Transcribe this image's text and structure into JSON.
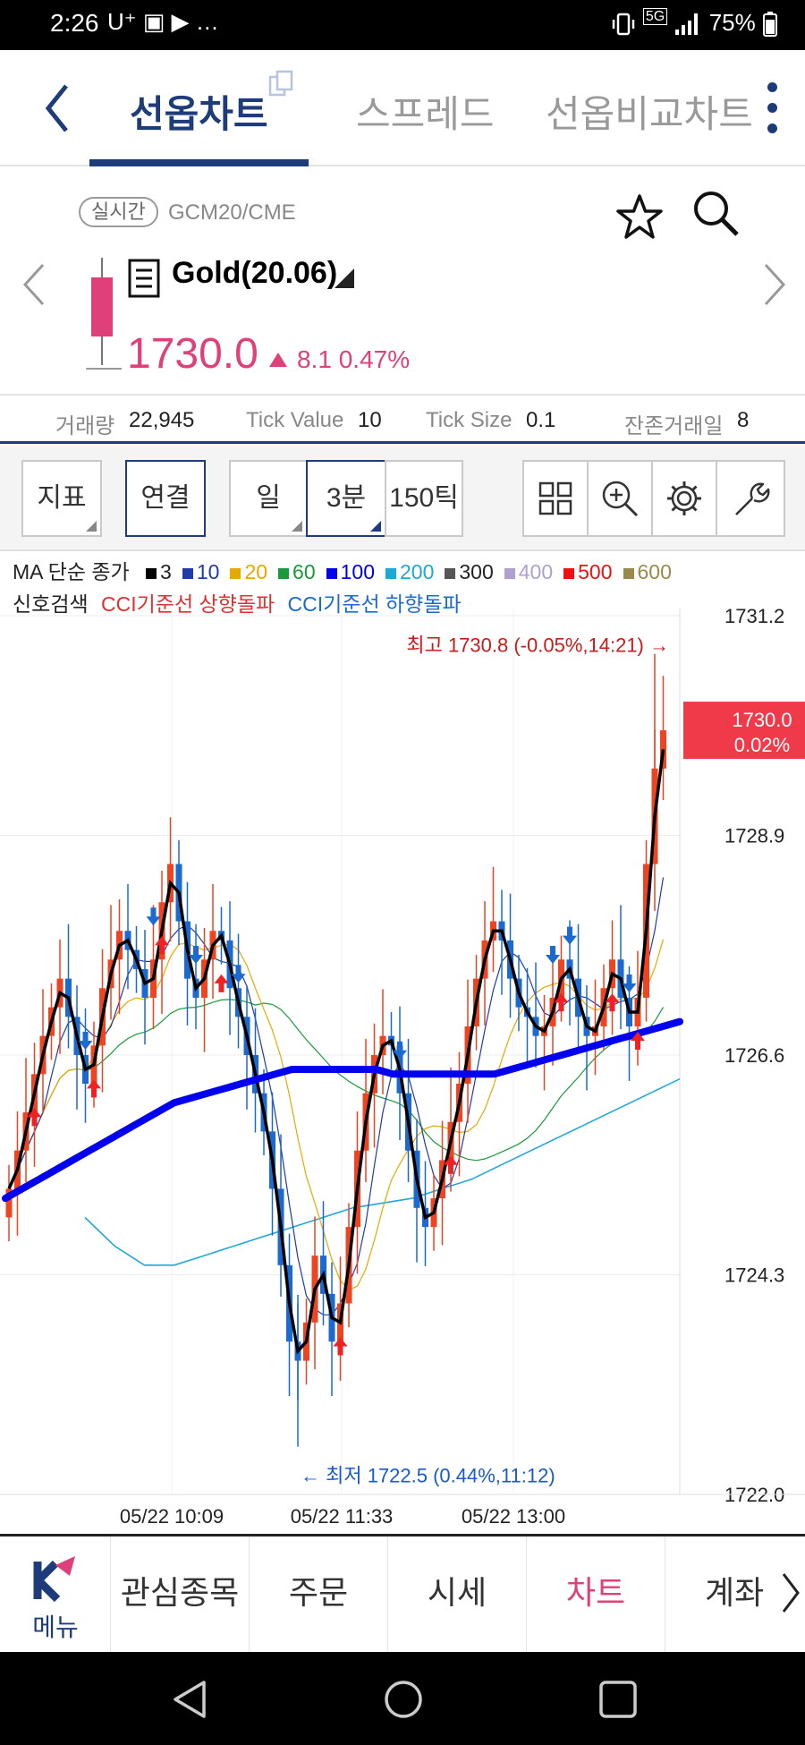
{
  "status_bar": {
    "time": "2:26",
    "left_icons": "U⁺ ▣ ▶  …",
    "network": "5G",
    "battery": "75%"
  },
  "header": {
    "tabs": [
      {
        "label": "선옵차트",
        "active": true
      },
      {
        "label": "스프레드",
        "active": false
      },
      {
        "label": "선옵비교차트",
        "active": false
      }
    ]
  },
  "quote": {
    "realtime_badge": "실시간",
    "symbol_code": "GCM20/CME",
    "instrument": "Gold(20.06)",
    "price": "1730.0",
    "change": "8.1",
    "change_pct": "0.47%",
    "up_color": "#e0407a"
  },
  "info": {
    "volume_label": "거래량",
    "volume": "22,945",
    "tick_value_label": "Tick Value",
    "tick_value": "10",
    "tick_size_label": "Tick Size",
    "tick_size": "0.1",
    "days_label": "잔존거래일",
    "days": "8"
  },
  "toolbar": {
    "indicator": "지표",
    "link": "연결",
    "day": "일",
    "interval": "3분",
    "tick": "150틱",
    "icons": [
      "grid-icon",
      "zoom-in-icon",
      "gear-icon",
      "wrench-icon"
    ]
  },
  "legend": {
    "prefix": "MA 단순 종가",
    "items": [
      {
        "label": "3",
        "color": "#000000"
      },
      {
        "label": "10",
        "color": "#1f3ca8"
      },
      {
        "label": "20",
        "color": "#e8a800"
      },
      {
        "label": "60",
        "color": "#1a9a3a"
      },
      {
        "label": "100",
        "color": "#0000ee"
      },
      {
        "label": "200",
        "color": "#1ea8d8"
      },
      {
        "label": "300",
        "color": "#555555"
      },
      {
        "label": "400",
        "color": "#b0a0d0"
      },
      {
        "label": "500",
        "color": "#ee1111"
      },
      {
        "label": "600",
        "color": "#9a8a4a"
      }
    ]
  },
  "signal": {
    "label": "신호검색",
    "up": "CCI기준선 상향돌파",
    "down": "CCI기준선 하향돌파",
    "up_color": "#e03030",
    "down_color": "#1a6ad0"
  },
  "chart_data": {
    "type": "candlestick",
    "y_ticks": [
      "1731.2",
      "1728.9",
      "1726.6",
      "1724.3",
      "1722.0"
    ],
    "x_ticks": [
      "05/22 10:09",
      "05/22 11:33",
      "05/22 13:00"
    ],
    "ylim": [
      1722.0,
      1731.2
    ],
    "current_price_label": "1730.0",
    "current_change_label": "0.02%",
    "high_annotation": "최고 1730.8 (-0.05%,14:21) →",
    "low_annotation": "← 최저 1722.5 (0.44%,11:12)",
    "up_color": "#ee4422",
    "down_color": "#1a6ad0",
    "closes": [
      1725.2,
      1725.6,
      1726.0,
      1726.4,
      1726.8,
      1727.1,
      1727.4,
      1727.0,
      1726.6,
      1726.3,
      1726.7,
      1727.3,
      1727.6,
      1727.9,
      1727.7,
      1727.5,
      1727.2,
      1727.6,
      1728.2,
      1728.6,
      1728.0,
      1727.4,
      1727.2,
      1727.6,
      1727.9,
      1727.8,
      1727.3,
      1727.0,
      1726.6,
      1726.2,
      1725.8,
      1725.2,
      1724.4,
      1723.6,
      1723.4,
      1723.8,
      1724.5,
      1724.1,
      1723.6,
      1724.0,
      1724.8,
      1725.6,
      1726.2,
      1726.6,
      1726.8,
      1726.7,
      1726.2,
      1725.6,
      1725.0,
      1724.8,
      1725.1,
      1725.5,
      1725.9,
      1726.3,
      1726.9,
      1727.4,
      1727.8,
      1728.0,
      1727.8,
      1727.4,
      1727.1,
      1727.0,
      1726.8,
      1726.9,
      1727.2,
      1727.6,
      1727.4,
      1727.0,
      1726.8,
      1726.9,
      1727.3,
      1727.6,
      1727.2,
      1726.9,
      1727.2,
      1728.6,
      1729.6,
      1730.0
    ],
    "ma100": [
      1725.1,
      1725.2,
      1725.3,
      1725.4,
      1725.5,
      1725.6,
      1725.7,
      1725.8,
      1725.9,
      1726.0,
      1726.1,
      1726.15,
      1726.2,
      1726.25,
      1726.3,
      1726.35,
      1726.4,
      1726.45,
      1726.45,
      1726.45,
      1726.45,
      1726.45,
      1726.45,
      1726.4,
      1726.4,
      1726.4,
      1726.4,
      1726.4,
      1726.4,
      1726.4,
      1726.45,
      1726.5,
      1726.55,
      1726.6,
      1726.65,
      1726.7,
      1726.75,
      1726.8,
      1726.85,
      1726.9,
      1726.95
    ],
    "ma200": [
      1724.9,
      1724.6,
      1724.4,
      1724.4,
      1724.5,
      1724.6,
      1724.7,
      1724.8,
      1724.9,
      1725.0,
      1725.05,
      1725.1,
      1725.2,
      1725.3,
      1725.45,
      1725.6,
      1725.75,
      1725.9,
      1726.05,
      1726.2,
      1726.35
    ]
  }
}
